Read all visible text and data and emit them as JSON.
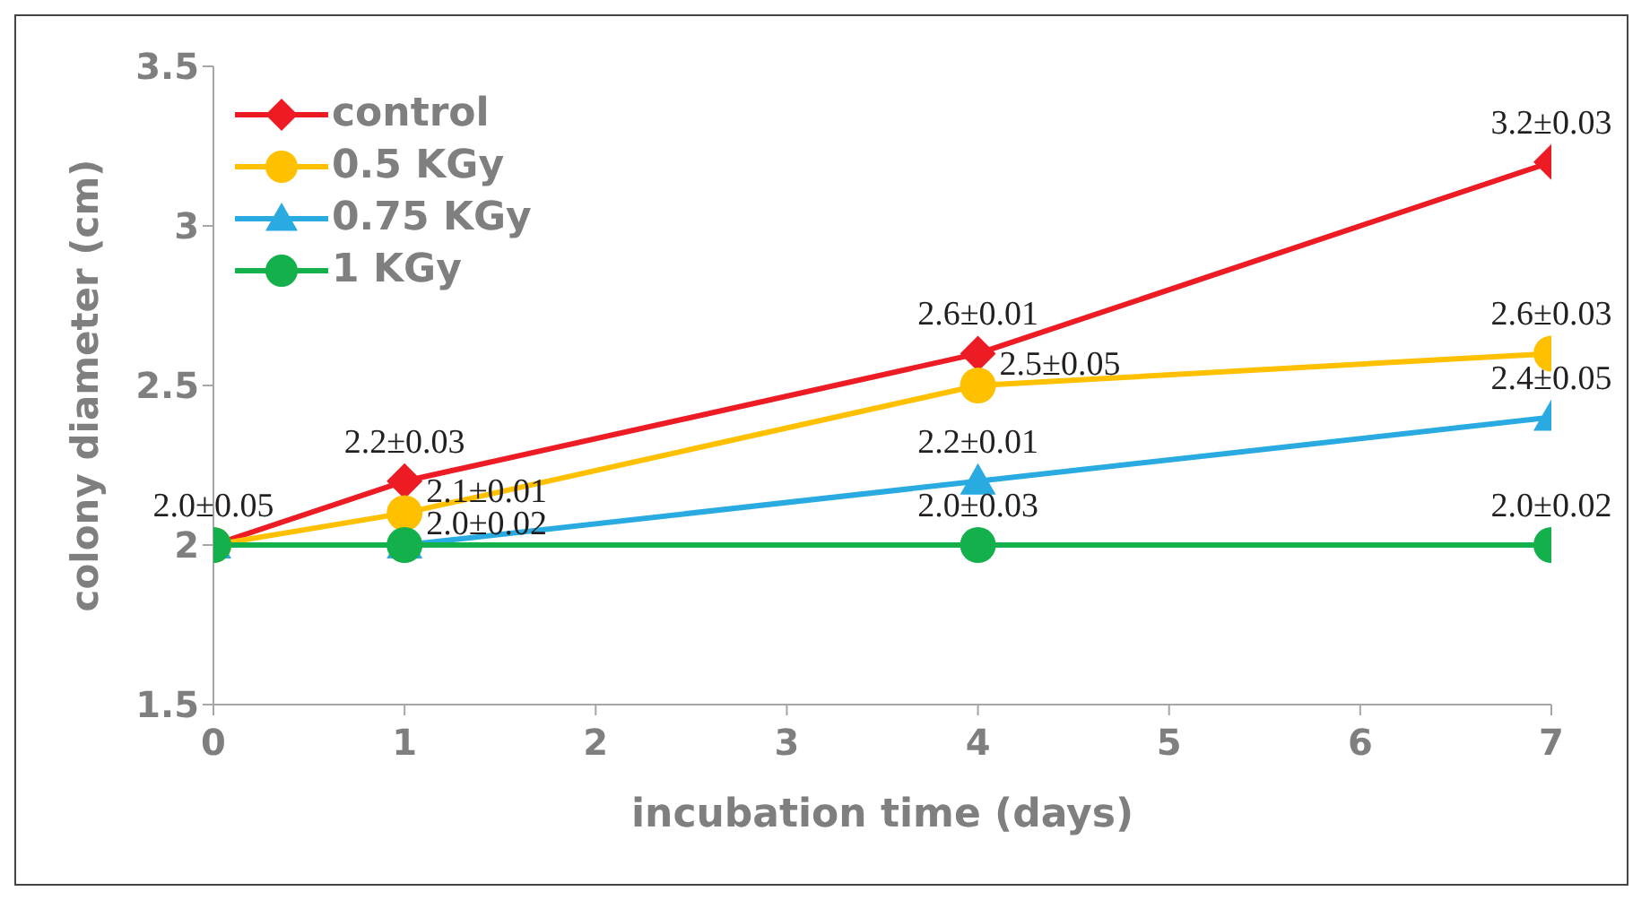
{
  "chart_data": {
    "type": "line",
    "xlabel": "incubation time (days)",
    "ylabel": "colony diameter (cm)",
    "x": [
      0,
      1,
      4,
      7
    ],
    "xlim": [
      0,
      7
    ],
    "xticks": [
      0,
      1,
      2,
      3,
      4,
      5,
      6,
      7
    ],
    "ylim": [
      1.5,
      3.5
    ],
    "yticks": [
      1.5,
      2,
      2.5,
      3,
      3.5
    ],
    "grid": false,
    "legend": "top left",
    "series": [
      {
        "name": "control",
        "color": "#ed1c24",
        "marker": "diamond",
        "values": [
          2.0,
          2.2,
          2.6,
          3.2
        ],
        "value_labels": [
          "2.0±0.05",
          "2.2±0.03",
          "2.6±0.01",
          "3.2±0.03"
        ]
      },
      {
        "name": "0.5 KGy",
        "color": "#ffc000",
        "marker": "circle",
        "values": [
          2.0,
          2.1,
          2.5,
          2.6
        ],
        "value_labels": [
          null,
          "2.1±0.01",
          "2.5±0.05",
          "2.6±0.03"
        ]
      },
      {
        "name": "0.75 KGy",
        "color": "#29abe2",
        "marker": "triangle",
        "values": [
          2.0,
          2.0,
          2.2,
          2.4
        ],
        "value_labels": [
          null,
          null,
          "2.2±0.01",
          "2.4±0.05"
        ]
      },
      {
        "name": "1 KGy",
        "color": "#13b04b",
        "marker": "circle",
        "values": [
          2.0,
          2.0,
          2.0,
          2.0
        ],
        "value_labels": [
          null,
          "2.0±0.02",
          "2.0±0.03",
          "2.0±0.02"
        ]
      }
    ]
  }
}
